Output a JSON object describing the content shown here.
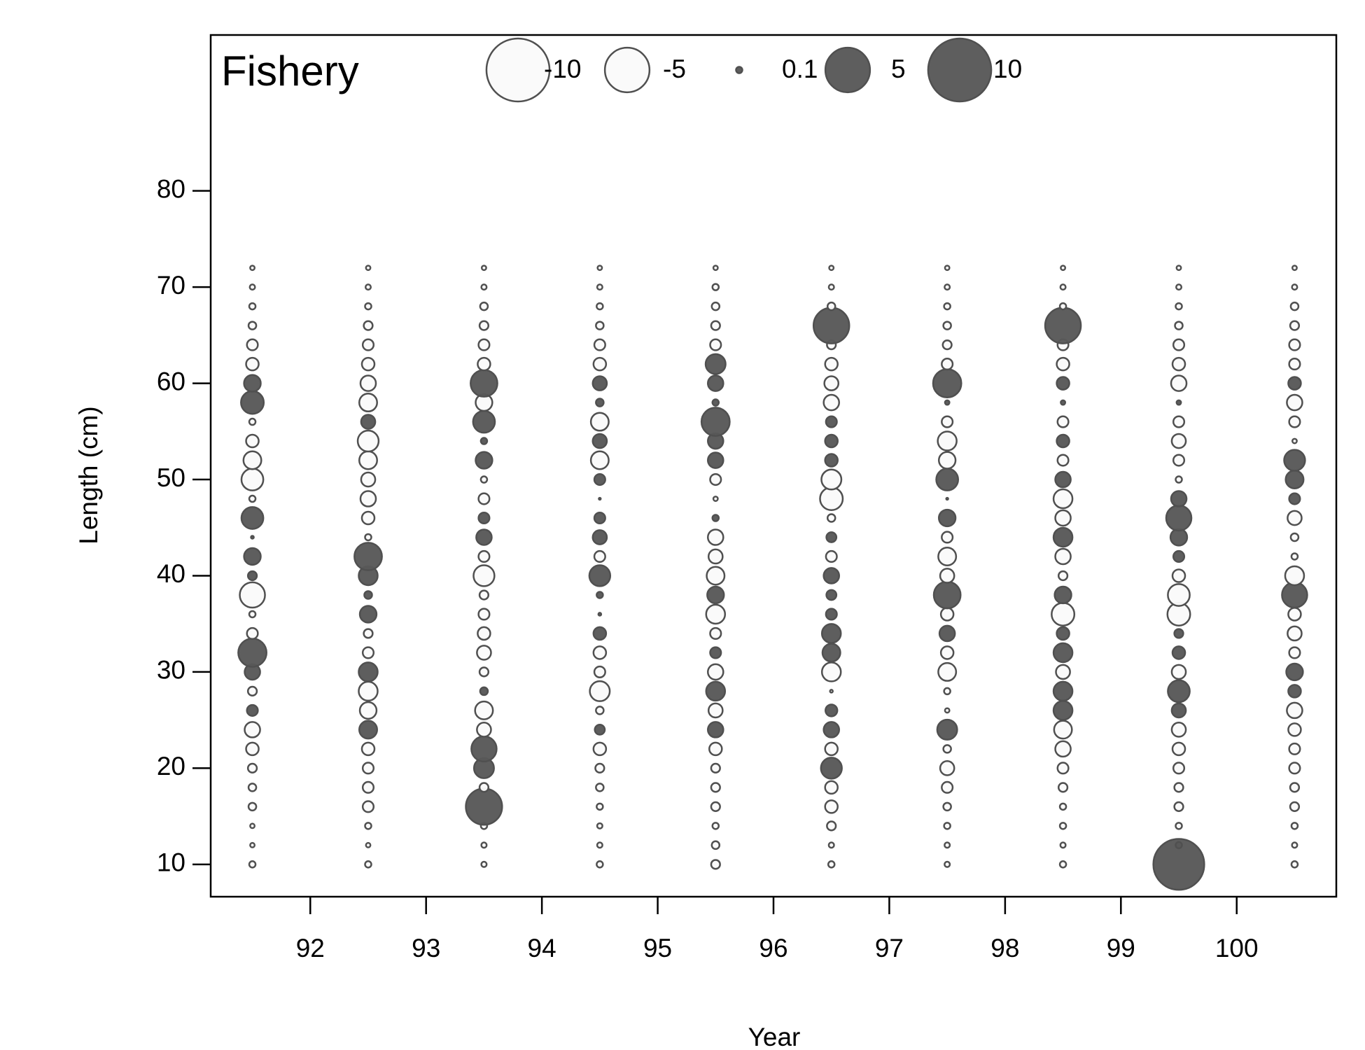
{
  "chart_data": {
    "type": "bubble",
    "title": "Fishery",
    "xlabel": "Year",
    "ylabel": "Length (cm)",
    "xlim": [
      91.14,
      100.86
    ],
    "ylim": [
      6.64,
      96.2
    ],
    "xticks": [
      92,
      93,
      94,
      95,
      96,
      97,
      98,
      99,
      100
    ],
    "yticks": [
      10,
      20,
      30,
      40,
      50,
      60,
      70,
      80
    ],
    "positive_color": "#595959",
    "negative_color": "#fafafa",
    "size_legend": [
      -10,
      -5,
      0.1,
      5,
      10
    ],
    "x": [
      91.5,
      92.5,
      93.5,
      94.5,
      95.5,
      96.5,
      97.5,
      98.5,
      99.5,
      100.5
    ],
    "y": [
      10,
      12,
      14,
      16,
      18,
      20,
      22,
      24,
      26,
      28,
      30,
      32,
      34,
      36,
      38,
      40,
      42,
      44,
      46,
      48,
      50,
      52,
      54,
      56,
      58,
      60,
      62,
      64,
      66,
      68,
      70,
      72
    ],
    "values": [
      [
        -0.1,
        -0.05,
        -0.05,
        -0.15,
        -0.15,
        -0.2,
        -0.4,
        -0.6,
        0.3,
        -0.2,
        0.6,
        2,
        -0.3,
        -0.1,
        -1.6,
        0.2,
        0.7,
        0.02,
        1.2,
        -0.1,
        -1.2,
        -0.8,
        -0.4,
        -0.1,
        1.3,
        0.7,
        -0.4,
        -0.3,
        -0.15,
        -0.1,
        -0.07,
        -0.05
      ],
      [
        -0.1,
        -0.05,
        -0.1,
        -0.3,
        -0.3,
        -0.3,
        -0.4,
        0.8,
        -0.7,
        -0.9,
        0.9,
        -0.3,
        -0.2,
        0.7,
        0.15,
        0.9,
        1.9,
        -0.1,
        -0.4,
        -0.6,
        -0.5,
        -0.8,
        -1.1,
        0.5,
        -0.8,
        -0.6,
        -0.4,
        -0.3,
        -0.2,
        -0.1,
        -0.07,
        -0.05
      ],
      [
        -0.07,
        -0.07,
        -0.1,
        3.3,
        -0.2,
        1,
        1.6,
        -0.5,
        -0.8,
        0.15,
        -0.2,
        -0.5,
        -0.4,
        -0.3,
        -0.2,
        -1.1,
        -0.3,
        0.6,
        0.3,
        -0.3,
        -0.1,
        0.7,
        0.1,
        1.2,
        -0.7,
        1.8,
        -0.4,
        -0.3,
        -0.2,
        -0.15,
        -0.07,
        -0.05
      ],
      [
        -0.1,
        -0.07,
        -0.07,
        -0.1,
        -0.15,
        -0.2,
        -0.4,
        0.25,
        -0.15,
        -1,
        -0.3,
        -0.4,
        0.4,
        0.02,
        0.1,
        1.1,
        -0.3,
        0.5,
        0.3,
        0.01,
        0.3,
        -0.8,
        0.5,
        -0.8,
        0.15,
        0.5,
        -0.4,
        -0.3,
        -0.15,
        -0.1,
        -0.07,
        -0.05
      ],
      [
        -0.2,
        -0.15,
        -0.1,
        -0.2,
        -0.2,
        -0.2,
        -0.4,
        0.6,
        -0.5,
        0.9,
        -0.6,
        0.3,
        -0.3,
        -0.9,
        0.7,
        -0.8,
        -0.5,
        -0.6,
        0.1,
        -0.05,
        -0.3,
        0.6,
        0.6,
        2,
        0.1,
        0.6,
        1,
        -0.3,
        -0.2,
        -0.15,
        -0.1,
        -0.05
      ],
      [
        -0.1,
        -0.07,
        -0.2,
        -0.4,
        -0.4,
        1.1,
        -0.4,
        0.6,
        0.35,
        -0.02,
        -0.9,
        0.8,
        0.9,
        0.3,
        0.25,
        0.6,
        -0.3,
        0.25,
        -0.15,
        -1.3,
        -1,
        0.4,
        0.4,
        0.3,
        -0.6,
        -0.5,
        -0.4,
        -0.2,
        3.2,
        -0.15,
        -0.07,
        -0.05
      ],
      [
        -0.07,
        -0.07,
        -0.1,
        -0.15,
        -0.3,
        -0.5,
        -0.15,
        1,
        -0.05,
        -0.1,
        -0.8,
        -0.4,
        0.6,
        -0.4,
        1.8,
        -0.5,
        -0.8,
        -0.3,
        0.7,
        -0.01,
        1.2,
        -0.7,
        -0.9,
        -0.3,
        0.05,
        2,
        -0.3,
        -0.2,
        -0.15,
        -0.1,
        -0.07,
        -0.05
      ],
      [
        -0.1,
        -0.07,
        -0.1,
        -0.1,
        -0.2,
        -0.3,
        -0.6,
        -0.8,
        0.9,
        0.9,
        -0.5,
        0.9,
        0.4,
        -1.3,
        0.7,
        -0.2,
        -0.6,
        0.9,
        -0.6,
        -0.9,
        0.6,
        -0.3,
        0.4,
        -0.3,
        0.05,
        0.4,
        -0.4,
        -0.3,
        3.2,
        -0.1,
        -0.07,
        -0.05
      ],
      [
        6.5,
        0.1,
        -0.1,
        -0.2,
        -0.2,
        -0.3,
        -0.4,
        -0.5,
        0.5,
        1.2,
        -0.5,
        0.4,
        0.2,
        -1.3,
        -1.2,
        -0.4,
        0.3,
        0.7,
        1.6,
        0.6,
        -0.1,
        -0.3,
        -0.5,
        -0.3,
        0.05,
        -0.6,
        -0.4,
        -0.3,
        -0.15,
        -0.1,
        -0.07,
        -0.05
      ],
      [
        -0.1,
        -0.07,
        -0.1,
        -0.2,
        -0.2,
        -0.3,
        -0.3,
        -0.4,
        -0.6,
        0.4,
        0.7,
        -0.3,
        -0.5,
        -0.4,
        1.6,
        -0.9,
        -0.1,
        -0.15,
        -0.5,
        0.3,
        0.8,
        1.1,
        -0.05,
        -0.3,
        -0.6,
        0.4,
        -0.3,
        -0.3,
        -0.2,
        -0.15,
        -0.07,
        -0.05
      ]
    ]
  }
}
